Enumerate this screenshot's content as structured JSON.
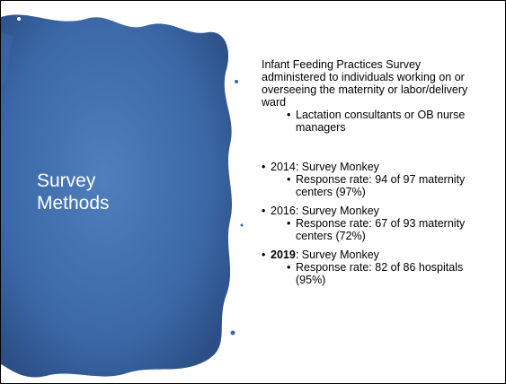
{
  "title": "Survey Methods",
  "intro": {
    "text": "Infant Feeding Practices Survey administered to individuals working on or overseeing the maternity or labor/delivery ward",
    "sub": "Lactation consultants or OB nurse managers"
  },
  "bullets": [
    {
      "year": "2014",
      "rest": ": Survey Monkey",
      "bold": false,
      "detail": "Response rate: 94 of 97 maternity centers (97%)"
    },
    {
      "year": "2016",
      "rest": ": Survey Monkey",
      "bold": false,
      "detail": "Response rate: 67 of 93 maternity centers (72%)"
    },
    {
      "year": "2019",
      "rest": ": Survey Monkey",
      "bold": true,
      "detail": "Response rate: 82 of 86 hospitals (95%)"
    }
  ]
}
